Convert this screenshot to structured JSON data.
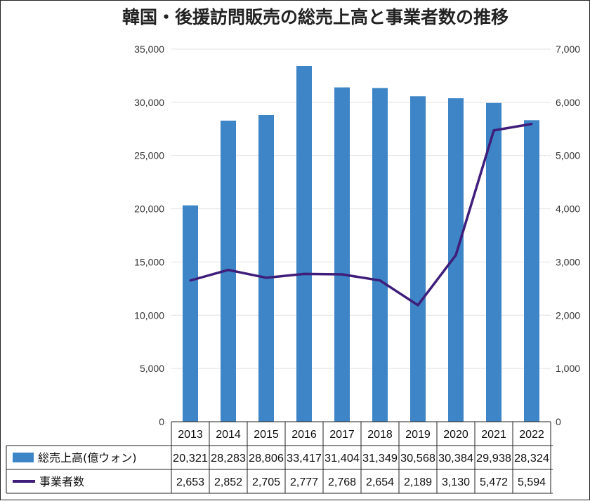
{
  "chart_data": {
    "type": "bar+line",
    "title": "韓国・後援訪問販売の総売上高と事業者数の推移",
    "categories": [
      "2013",
      "2014",
      "2015",
      "2016",
      "2017",
      "2018",
      "2019",
      "2020",
      "2021",
      "2022"
    ],
    "series": [
      {
        "name": "総売上高(億ウォン)",
        "type": "bar",
        "axis": "left",
        "color": "#3d85c6",
        "values": [
          20321,
          28283,
          28806,
          33417,
          31404,
          31349,
          30568,
          30384,
          29938,
          28324
        ],
        "labels": [
          "20,321",
          "28,283",
          "28,806",
          "33,417",
          "31,404",
          "31,349",
          "30,568",
          "30,384",
          "29,938",
          "28,324"
        ]
      },
      {
        "name": "事業者数",
        "type": "line",
        "axis": "right",
        "color": "#3f1d7a",
        "values": [
          2653,
          2852,
          2705,
          2777,
          2768,
          2654,
          2189,
          3130,
          5472,
          5594
        ],
        "labels": [
          "2,653",
          "2,852",
          "2,705",
          "2,777",
          "2,768",
          "2,654",
          "2,189",
          "3,130",
          "5,472",
          "5,594"
        ]
      }
    ],
    "y_left": {
      "range": [
        0,
        35000
      ],
      "ticks": [
        0,
        5000,
        10000,
        15000,
        20000,
        25000,
        30000,
        35000
      ],
      "tick_labels": [
        "0",
        "5,000",
        "10,000",
        "15,000",
        "20,000",
        "25,000",
        "30,000",
        "35,000"
      ]
    },
    "y_right": {
      "range": [
        0,
        7000
      ],
      "ticks": [
        0,
        1000,
        2000,
        3000,
        4000,
        5000,
        6000,
        7000
      ],
      "tick_labels": [
        "0",
        "1,000",
        "2,000",
        "3,000",
        "4,000",
        "5,000",
        "6,000",
        "7,000"
      ]
    },
    "grid": true,
    "legend_placement": "data-table-below"
  }
}
